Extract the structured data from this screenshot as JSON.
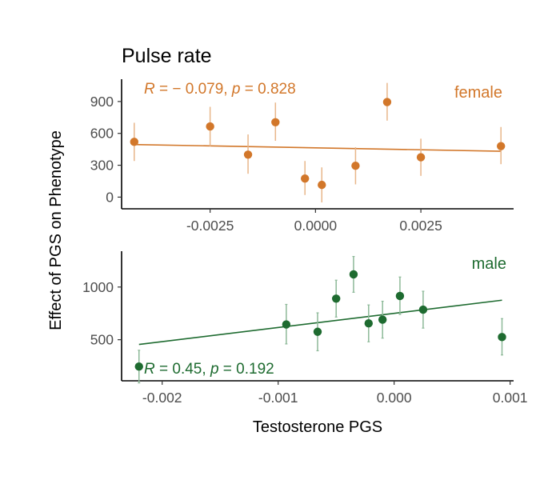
{
  "chart_data": {
    "type": "scatter",
    "title": "Pulse rate",
    "xlabel": "Testosterone PGS",
    "ylabel": "Effect of PGS on Phenotype",
    "grid": false,
    "panels": [
      {
        "name": "female",
        "color": "#D2772A",
        "error_color": "#E8B68A",
        "stat": {
          "r_label": "R",
          "r_value": "− 0.079",
          "p_label": "p",
          "p_value": "0.828"
        },
        "xlim": [
          -0.0046,
          0.0047
        ],
        "ylim": [
          -110,
          1110
        ],
        "x_ticks": [
          -0.0025,
          0.0,
          0.0025
        ],
        "x_tick_labels": [
          "-0.0025",
          "0.0000",
          "0.0025"
        ],
        "y_ticks": [
          0,
          300,
          600,
          900
        ],
        "y_tick_labels": [
          "0",
          "300",
          "600",
          "900"
        ],
        "regression": {
          "x": [
            -0.0043,
            0.0044
          ],
          "y": [
            495,
            432
          ]
        },
        "points": [
          {
            "x": -0.0043,
            "y": 520,
            "lo": 340,
            "hi": 700
          },
          {
            "x": -0.0025,
            "y": 665,
            "lo": 480,
            "hi": 850
          },
          {
            "x": -0.0016,
            "y": 400,
            "lo": 220,
            "hi": 590
          },
          {
            "x": -0.00095,
            "y": 705,
            "lo": 530,
            "hi": 890
          },
          {
            "x": -0.00025,
            "y": 175,
            "lo": 20,
            "hi": 340
          },
          {
            "x": 0.00015,
            "y": 115,
            "lo": -50,
            "hi": 280
          },
          {
            "x": 0.00095,
            "y": 295,
            "lo": 120,
            "hi": 470
          },
          {
            "x": 0.0017,
            "y": 895,
            "lo": 720,
            "hi": 1075
          },
          {
            "x": 0.0025,
            "y": 375,
            "lo": 200,
            "hi": 550
          },
          {
            "x": 0.0044,
            "y": 480,
            "lo": 310,
            "hi": 660
          }
        ]
      },
      {
        "name": "male",
        "color": "#1E6B30",
        "error_color": "#8DB998",
        "stat": {
          "r_label": "R",
          "r_value": "0.45",
          "p_label": "p",
          "p_value": "0.192"
        },
        "xlim": [
          -0.00235,
          0.00103
        ],
        "ylim": [
          110,
          1340
        ],
        "x_ticks": [
          -0.002,
          -0.001,
          0.0,
          0.001
        ],
        "x_tick_labels": [
          "-0.002",
          "-0.001",
          "0.000",
          "0.001"
        ],
        "y_ticks": [
          500,
          1000
        ],
        "y_tick_labels": [
          "500",
          "1000"
        ],
        "regression": {
          "x": [
            -0.0022,
            0.00093
          ],
          "y": [
            455,
            875
          ]
        },
        "points": [
          {
            "x": -0.0022,
            "y": 245,
            "lo": 90,
            "hi": 400
          },
          {
            "x": -0.00093,
            "y": 645,
            "lo": 460,
            "hi": 835
          },
          {
            "x": -0.00066,
            "y": 575,
            "lo": 395,
            "hi": 755
          },
          {
            "x": -0.0005,
            "y": 890,
            "lo": 715,
            "hi": 1065
          },
          {
            "x": -0.00035,
            "y": 1120,
            "lo": 950,
            "hi": 1290
          },
          {
            "x": -0.00022,
            "y": 655,
            "lo": 480,
            "hi": 830
          },
          {
            "x": -0.0001,
            "y": 690,
            "lo": 515,
            "hi": 865
          },
          {
            "x": 5e-05,
            "y": 915,
            "lo": 740,
            "hi": 1095
          },
          {
            "x": 0.00025,
            "y": 785,
            "lo": 610,
            "hi": 960
          },
          {
            "x": 0.00093,
            "y": 525,
            "lo": 355,
            "hi": 700
          }
        ]
      }
    ]
  }
}
